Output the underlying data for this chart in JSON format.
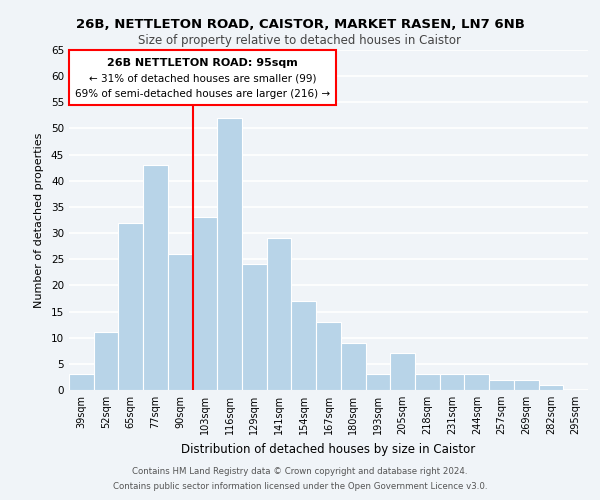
{
  "title1": "26B, NETTLETON ROAD, CAISTOR, MARKET RASEN, LN7 6NB",
  "title2": "Size of property relative to detached houses in Caistor",
  "xlabel": "Distribution of detached houses by size in Caistor",
  "ylabel": "Number of detached properties",
  "categories": [
    "39sqm",
    "52sqm",
    "65sqm",
    "77sqm",
    "90sqm",
    "103sqm",
    "116sqm",
    "129sqm",
    "141sqm",
    "154sqm",
    "167sqm",
    "180sqm",
    "193sqm",
    "205sqm",
    "218sqm",
    "231sqm",
    "244sqm",
    "257sqm",
    "269sqm",
    "282sqm",
    "295sqm"
  ],
  "values": [
    3,
    11,
    32,
    43,
    26,
    33,
    52,
    24,
    29,
    17,
    13,
    9,
    3,
    7,
    3,
    3,
    3,
    2,
    2,
    1,
    0
  ],
  "bar_color": "#b8d4e8",
  "bar_edge_color": "#ffffff",
  "bg_color": "#f0f4f8",
  "plot_bg_color": "#f0f4f8",
  "grid_color": "#ffffff",
  "annotation_box_line": "red",
  "annotation_text_line1": "26B NETTLETON ROAD: 95sqm",
  "annotation_text_line2": "← 31% of detached houses are smaller (99)",
  "annotation_text_line3": "69% of semi-detached houses are larger (216) →",
  "ylim": [
    0,
    65
  ],
  "yticks": [
    0,
    5,
    10,
    15,
    20,
    25,
    30,
    35,
    40,
    45,
    50,
    55,
    60,
    65
  ],
  "footnote1": "Contains HM Land Registry data © Crown copyright and database right 2024.",
  "footnote2": "Contains public sector information licensed under the Open Government Licence v3.0."
}
